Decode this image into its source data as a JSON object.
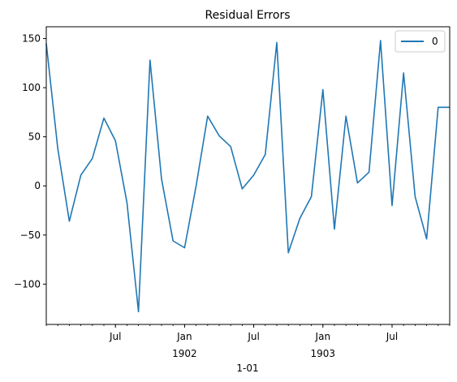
{
  "chart_data": {
    "type": "line",
    "title": "Residual Errors",
    "xlabel": "1-01",
    "ylabel": "",
    "x_range": [
      "1901-01",
      "1903-12"
    ],
    "ylim": [
      -141,
      162
    ],
    "yticks": [
      -100,
      -50,
      0,
      50,
      100,
      150
    ],
    "xticks": [
      {
        "x": "1901-07",
        "label": "Jul",
        "sublabel": ""
      },
      {
        "x": "1902-01",
        "label": "Jan",
        "sublabel": "1902"
      },
      {
        "x": "1902-07",
        "label": "Jul",
        "sublabel": ""
      },
      {
        "x": "1903-01",
        "label": "Jan",
        "sublabel": "1903"
      },
      {
        "x": "1903-07",
        "label": "Jul",
        "sublabel": ""
      }
    ],
    "grid": false,
    "legend": "upper-right",
    "series": [
      {
        "name": "0",
        "color": "#1f77b4",
        "x": [
          "1901-01",
          "1901-02",
          "1901-03",
          "1901-04",
          "1901-05",
          "1901-06",
          "1901-07",
          "1901-08",
          "1901-09",
          "1901-10",
          "1901-11",
          "1901-12",
          "1902-01",
          "1902-02",
          "1902-03",
          "1902-04",
          "1902-05",
          "1902-06",
          "1902-07",
          "1902-08",
          "1902-09",
          "1902-10",
          "1902-11",
          "1902-12",
          "1903-01",
          "1903-02",
          "1903-03",
          "1903-04",
          "1903-05",
          "1903-06",
          "1903-07",
          "1903-08",
          "1903-09",
          "1903-10",
          "1903-11",
          "1903-12"
        ],
        "values": [
          145,
          38,
          -36,
          11,
          28,
          69,
          46,
          -17,
          -128,
          128,
          7,
          -56,
          -63,
          0,
          71,
          51,
          40,
          -3,
          11,
          32,
          146,
          -68,
          -33,
          -11,
          98,
          -44,
          71,
          3,
          14,
          148,
          -20,
          115,
          -11,
          -54,
          80,
          80
        ]
      }
    ]
  }
}
